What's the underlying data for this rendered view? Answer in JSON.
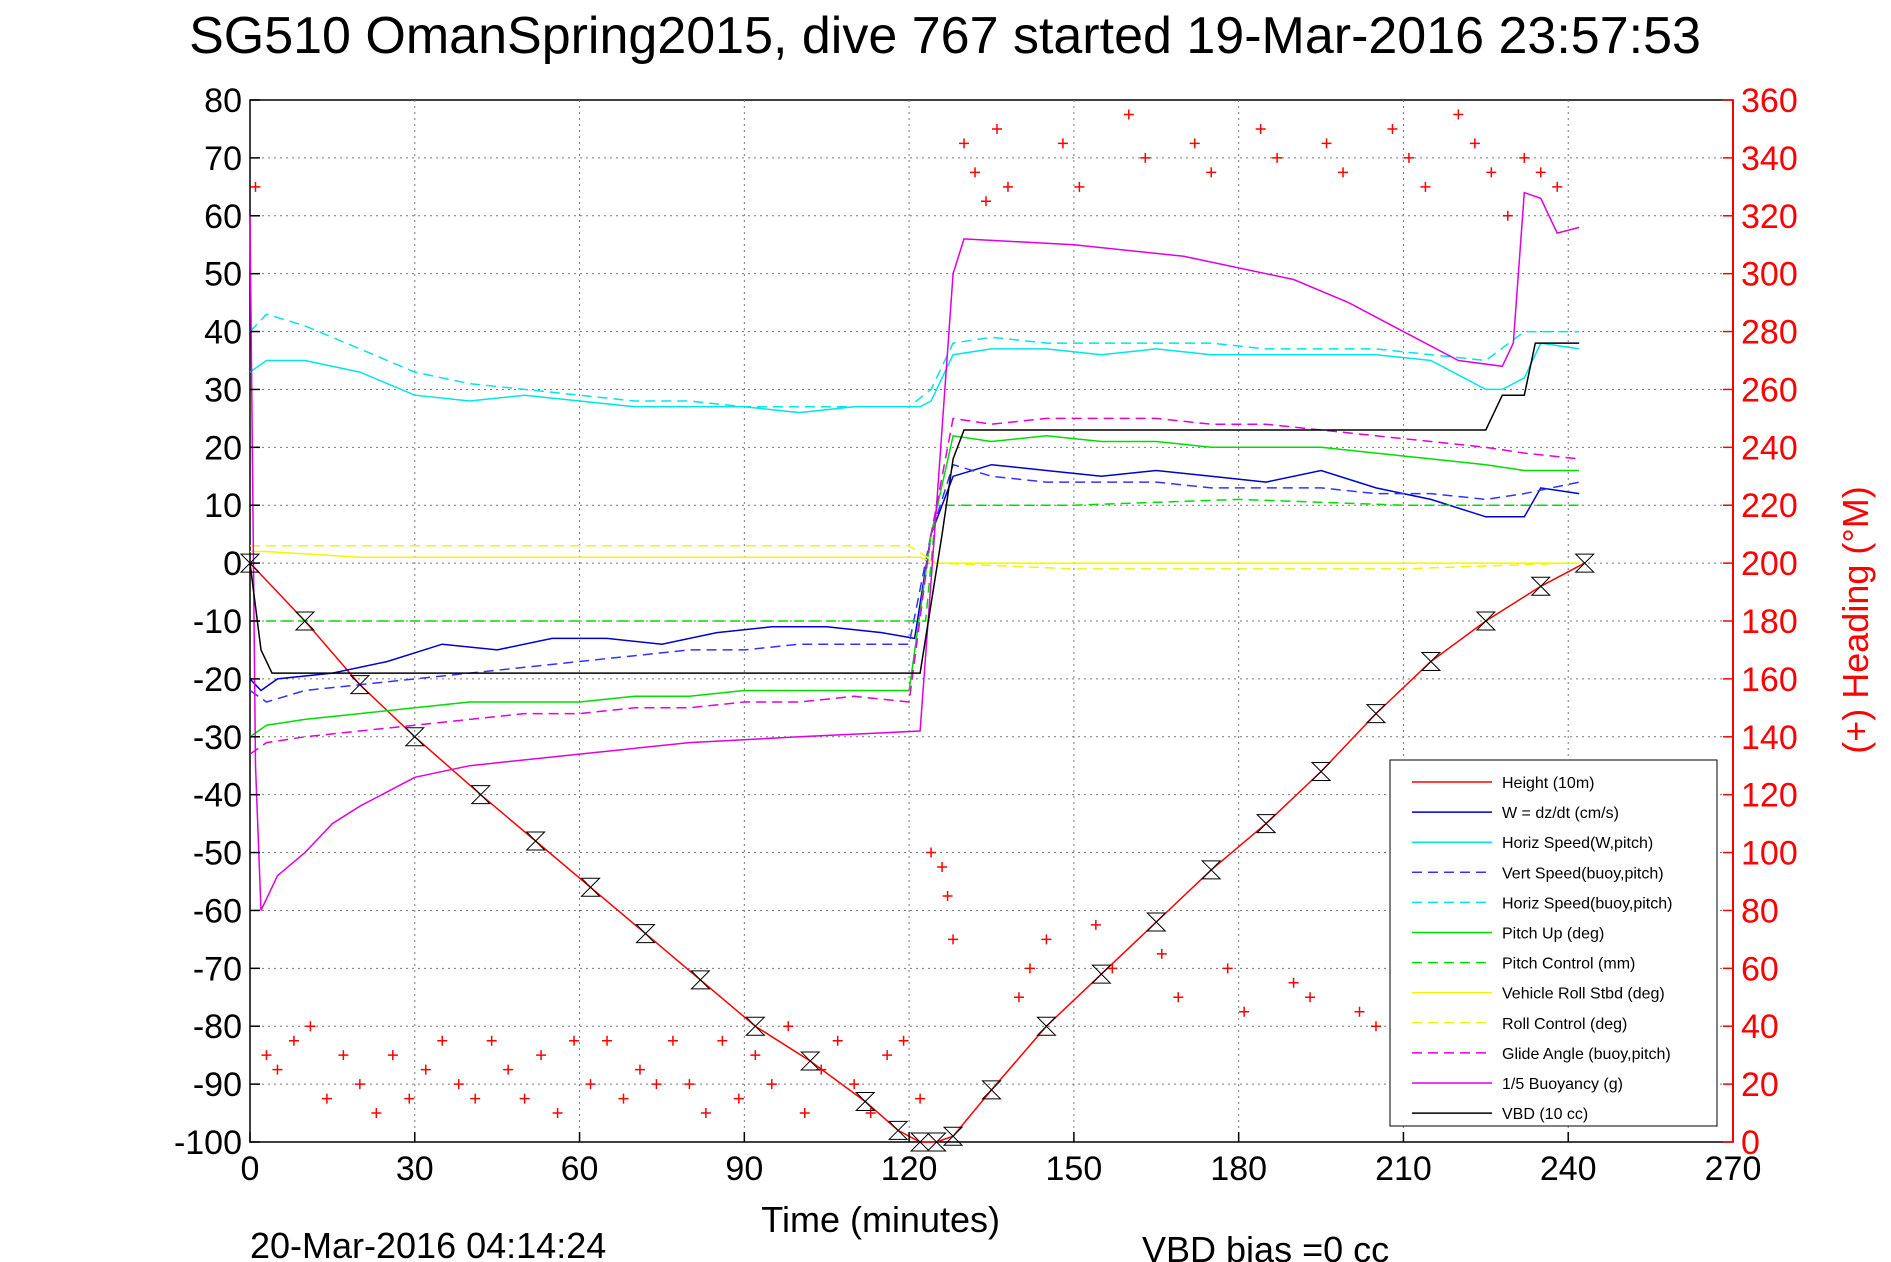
{
  "chart_data": {
    "type": "line",
    "title": "SG510 OmanSpring2015, dive 767 started 19-Mar-2016 23:57:53",
    "xlabel": "Time (minutes)",
    "ylabel_right": "(+) Heading (°M)",
    "footer_left": "20-Mar-2016 04:14:24",
    "footer_right": "VBD bias =0 cc",
    "xlim": [
      0,
      270
    ],
    "ylim_left": [
      -100,
      80
    ],
    "ylim_right": [
      0,
      360
    ],
    "x_ticks": [
      0,
      30,
      60,
      90,
      120,
      150,
      180,
      210,
      240,
      270
    ],
    "y_ticks_left": [
      80,
      70,
      60,
      50,
      40,
      30,
      20,
      10,
      0,
      -10,
      -20,
      -30,
      -40,
      -50,
      -60,
      -70,
      -80,
      -90,
      -100
    ],
    "y_ticks_right": [
      360,
      340,
      320,
      300,
      280,
      260,
      240,
      220,
      200,
      180,
      160,
      140,
      120,
      100,
      80,
      60,
      40,
      20,
      0
    ],
    "grid": true,
    "legend_position": "lower-right",
    "colors": {
      "height": "#ff0000",
      "w": "#0000cc",
      "horiz_speed_w": "#00e5e5",
      "vert_speed_buoy": "#3333ff",
      "horiz_speed_buoy": "#00e5e5",
      "pitch_up": "#00dd00",
      "pitch_control": "#00dd00",
      "roll": "#f5f500",
      "roll_control": "#f5f500",
      "glide_angle": "#e000e0",
      "buoyancy": "#e000e0",
      "vbd": "#000000",
      "heading": "#ff0000"
    },
    "series": [
      {
        "name": "Height (10m)",
        "key": "height",
        "dash": "",
        "x": [
          0,
          10,
          20,
          30,
          42,
          52,
          62,
          72,
          82,
          92,
          102,
          112,
          118,
          122,
          125,
          128,
          135,
          145,
          155,
          165,
          175,
          185,
          195,
          205,
          215,
          225,
          235,
          243
        ],
        "y": [
          0,
          -10,
          -21,
          -30,
          -40,
          -48,
          -56,
          -64,
          -72,
          -80,
          -86,
          -93,
          -98,
          -100,
          -100,
          -99,
          -91,
          -80,
          -71,
          -62,
          -53,
          -45,
          -36,
          -26,
          -17,
          -10,
          -4,
          0
        ]
      },
      {
        "name": "W = dz/dt (cm/s)",
        "key": "w",
        "dash": "",
        "x": [
          0,
          2,
          5,
          15,
          25,
          35,
          45,
          55,
          65,
          75,
          85,
          95,
          105,
          115,
          121,
          124,
          128,
          135,
          145,
          155,
          165,
          175,
          185,
          195,
          205,
          215,
          225,
          232,
          235,
          242
        ],
        "y": [
          -20,
          -22,
          -20,
          -19,
          -17,
          -14,
          -15,
          -13,
          -13,
          -14,
          -12,
          -11,
          -11,
          -12,
          -13,
          5,
          15,
          17,
          16,
          15,
          16,
          15,
          14,
          16,
          13,
          11,
          8,
          8,
          13,
          12
        ]
      },
      {
        "name": "Horiz Speed(W,pitch)",
        "key": "horiz_speed_w",
        "dash": "",
        "x": [
          0,
          3,
          10,
          20,
          30,
          40,
          50,
          60,
          70,
          80,
          90,
          100,
          110,
          120,
          122,
          124,
          128,
          135,
          145,
          155,
          165,
          175,
          185,
          195,
          205,
          215,
          225,
          228,
          232,
          235,
          242
        ],
        "y": [
          33,
          35,
          35,
          33,
          29,
          28,
          29,
          28,
          27,
          27,
          27,
          26,
          27,
          27,
          27,
          28,
          36,
          37,
          37,
          36,
          37,
          36,
          36,
          36,
          36,
          35,
          30,
          30,
          32,
          38,
          37
        ]
      },
      {
        "name": "Vert Speed(buoy,pitch)",
        "key": "vert_speed_buoy",
        "dash": "10 6",
        "x": [
          0,
          3,
          10,
          20,
          30,
          40,
          50,
          60,
          70,
          80,
          90,
          100,
          110,
          120,
          124,
          128,
          135,
          145,
          155,
          165,
          175,
          185,
          195,
          205,
          215,
          225,
          232,
          242
        ],
        "y": [
          -22,
          -24,
          -22,
          -21,
          -20,
          -19,
          -18,
          -17,
          -16,
          -15,
          -15,
          -14,
          -14,
          -14,
          5,
          17,
          15,
          14,
          14,
          14,
          13,
          13,
          13,
          12,
          12,
          11,
          12,
          14
        ]
      },
      {
        "name": "Horiz Speed(buoy,pitch)",
        "key": "horiz_speed_buoy",
        "dash": "10 6",
        "x": [
          0,
          3,
          10,
          20,
          30,
          40,
          50,
          60,
          70,
          80,
          90,
          100,
          110,
          120,
          124,
          128,
          135,
          145,
          155,
          165,
          175,
          185,
          195,
          205,
          215,
          225,
          232,
          242
        ],
        "y": [
          40,
          43,
          41,
          37,
          33,
          31,
          30,
          29,
          28,
          28,
          27,
          27,
          27,
          27,
          30,
          38,
          39,
          38,
          38,
          38,
          38,
          37,
          37,
          37,
          36,
          35,
          40,
          40
        ]
      },
      {
        "name": "Pitch Up (deg)",
        "key": "pitch_up",
        "dash": "",
        "x": [
          0,
          3,
          10,
          20,
          30,
          40,
          50,
          60,
          70,
          80,
          90,
          100,
          110,
          120,
          124,
          128,
          135,
          145,
          155,
          165,
          175,
          185,
          195,
          205,
          215,
          225,
          232,
          242
        ],
        "y": [
          -30,
          -28,
          -27,
          -26,
          -25,
          -24,
          -24,
          -24,
          -23,
          -23,
          -22,
          -22,
          -22,
          -22,
          5,
          22,
          21,
          22,
          21,
          21,
          20,
          20,
          20,
          19,
          18,
          17,
          16,
          16
        ]
      },
      {
        "name": "Pitch Control (mm)",
        "key": "pitch_control",
        "dash": "10 6",
        "x": [
          0,
          3,
          10,
          30,
          60,
          90,
          120,
          123,
          125,
          128,
          150,
          180,
          210,
          225,
          232,
          242
        ],
        "y": [
          -10,
          -10,
          -10,
          -10,
          -10,
          -10,
          -10,
          -10,
          10,
          10,
          10,
          11,
          10,
          10,
          10,
          10
        ]
      },
      {
        "name": "Vehicle Roll Stbd (deg)",
        "key": "roll",
        "dash": "",
        "x": [
          0,
          3,
          20,
          40,
          60,
          80,
          100,
          120,
          122,
          125,
          150,
          180,
          210,
          240,
          242
        ],
        "y": [
          2,
          2,
          1,
          1,
          1,
          1,
          1,
          1,
          1,
          0,
          0,
          0,
          0,
          0,
          0
        ]
      },
      {
        "name": "Roll Control (deg)",
        "key": "roll_control",
        "dash": "10 6",
        "x": [
          0,
          3,
          20,
          40,
          60,
          80,
          100,
          120,
          125,
          150,
          180,
          210,
          240,
          242
        ],
        "y": [
          3,
          3,
          3,
          3,
          3,
          3,
          3,
          3,
          0,
          -1,
          -1,
          -1,
          0,
          0
        ]
      },
      {
        "name": "Glide Angle (buoy,pitch)",
        "key": "glide_angle",
        "dash": "10 6",
        "x": [
          0,
          3,
          10,
          20,
          30,
          40,
          50,
          60,
          70,
          80,
          90,
          100,
          110,
          120,
          124,
          128,
          135,
          145,
          155,
          165,
          175,
          185,
          195,
          205,
          215,
          225,
          232,
          242
        ],
        "y": [
          -33,
          -31,
          -30,
          -29,
          -28,
          -27,
          -26,
          -26,
          -25,
          -25,
          -24,
          -24,
          -23,
          -24,
          5,
          25,
          24,
          25,
          25,
          25,
          24,
          24,
          23,
          22,
          21,
          20,
          19,
          18
        ]
      },
      {
        "name": "1/5 Buoyancy (g)",
        "key": "buoyancy",
        "dash": "",
        "x": [
          0,
          1,
          2,
          5,
          10,
          15,
          20,
          30,
          40,
          60,
          80,
          100,
          122,
          125,
          128,
          130,
          150,
          170,
          190,
          200,
          210,
          220,
          228,
          230,
          232,
          235,
          238,
          242
        ],
        "y": [
          60,
          -35,
          -60,
          -54,
          -50,
          -45,
          -42,
          -37,
          -35,
          -33,
          -31,
          -30,
          -29,
          10,
          50,
          56,
          55,
          53,
          49,
          45,
          40,
          35,
          34,
          38,
          64,
          63,
          57,
          58
        ]
      },
      {
        "name": "VBD (10 cc)",
        "key": "vbd",
        "dash": "",
        "x": [
          0,
          2,
          4,
          30,
          60,
          90,
          122,
          126,
          128,
          130,
          160,
          190,
          225,
          228,
          232,
          234,
          242
        ],
        "y": [
          0,
          -15,
          -19,
          -19,
          -19,
          -19,
          -19,
          5,
          18,
          23,
          23,
          23,
          23,
          29,
          29,
          38,
          38
        ]
      }
    ],
    "heading": {
      "name": "(+) Heading (°M)",
      "marker": "+",
      "x": [
        1,
        3,
        5,
        8,
        11,
        14,
        17,
        20,
        23,
        26,
        29,
        32,
        35,
        38,
        41,
        44,
        47,
        50,
        53,
        56,
        59,
        62,
        65,
        68,
        71,
        74,
        77,
        80,
        83,
        86,
        89,
        92,
        95,
        98,
        101,
        104,
        107,
        110,
        113,
        116,
        119,
        122,
        124,
        126,
        127,
        128,
        130,
        132,
        134,
        136,
        138,
        140,
        142,
        145,
        148,
        151,
        154,
        157,
        160,
        163,
        166,
        169,
        172,
        175,
        178,
        181,
        184,
        187,
        190,
        193,
        196,
        199,
        202,
        205,
        208,
        211,
        214,
        217,
        220,
        223,
        226,
        229,
        232,
        235,
        238
      ],
      "y": [
        330,
        30,
        25,
        35,
        40,
        15,
        30,
        20,
        10,
        30,
        15,
        25,
        35,
        20,
        15,
        35,
        25,
        15,
        30,
        10,
        35,
        20,
        35,
        15,
        25,
        20,
        35,
        20,
        10,
        35,
        15,
        30,
        20,
        40,
        10,
        25,
        35,
        20,
        10,
        30,
        35,
        15,
        100,
        95,
        85,
        70,
        345,
        335,
        325,
        350,
        330,
        50,
        60,
        70,
        345,
        330,
        75,
        60,
        355,
        340,
        65,
        50,
        345,
        335,
        60,
        45,
        350,
        340,
        55,
        50,
        345,
        335,
        45,
        40,
        350,
        340,
        330,
        35,
        355,
        345,
        335,
        320,
        340,
        335,
        330
      ]
    }
  }
}
